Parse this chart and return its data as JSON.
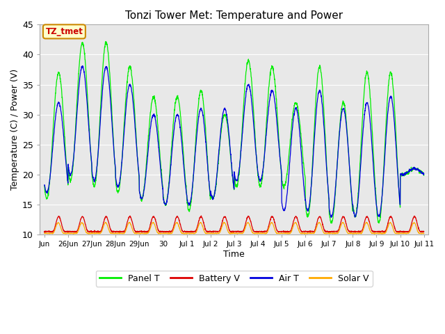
{
  "title": "Tonzi Tower Met: Temperature and Power",
  "xlabel": "Time",
  "ylabel": "Temperature (C) / Power (V)",
  "ylim": [
    10,
    45
  ],
  "yticks": [
    10,
    15,
    20,
    25,
    30,
    35,
    40,
    45
  ],
  "annotation_text": "TZ_tmet",
  "annotation_bg": "#ffffcc",
  "annotation_border": "#cc8800",
  "annotation_text_color": "#cc0000",
  "colors": {
    "panel_t": "#00ee00",
    "battery_v": "#dd0000",
    "air_t": "#0000dd",
    "solar_v": "#ffaa00"
  },
  "legend_labels": [
    "Panel T",
    "Battery V",
    "Air T",
    "Solar V"
  ],
  "fig_bg": "#ffffff",
  "plot_bg": "#e8e8e8",
  "grid_color": "#ffffff",
  "xtick_labels": [
    "Jun",
    "26Jun",
    "27Jun",
    "28Jun",
    "29Jun",
    "30",
    "Jul 1",
    "Jul 2",
    "Jul 3",
    "Jul 4",
    "Jul 5",
    "Jul 6",
    "Jul 7",
    "Jul 8",
    "Jul 9",
    "Jul 10",
    "Jul 11"
  ],
  "panel_t_day_peaks": [
    37,
    42,
    42,
    38,
    33,
    33,
    34,
    30,
    39,
    38,
    32,
    38,
    32,
    37,
    37,
    21
  ],
  "panel_t_day_mins": [
    16,
    19,
    18,
    17,
    16,
    15,
    14,
    16,
    18,
    18,
    18,
    13,
    12,
    13,
    12,
    20
  ],
  "air_t_day_peaks": [
    32,
    38,
    38,
    35,
    30,
    30,
    31,
    31,
    35,
    34,
    31,
    34,
    31,
    32,
    33,
    21
  ],
  "air_t_day_mins": [
    17,
    20,
    19,
    18,
    16,
    15,
    15,
    16,
    19,
    19,
    14,
    14,
    13,
    13,
    13,
    20
  ],
  "battery_v_base": 10.5,
  "battery_v_amp": 2.5,
  "solar_v_base": 10.2,
  "solar_v_amp": 1.8
}
